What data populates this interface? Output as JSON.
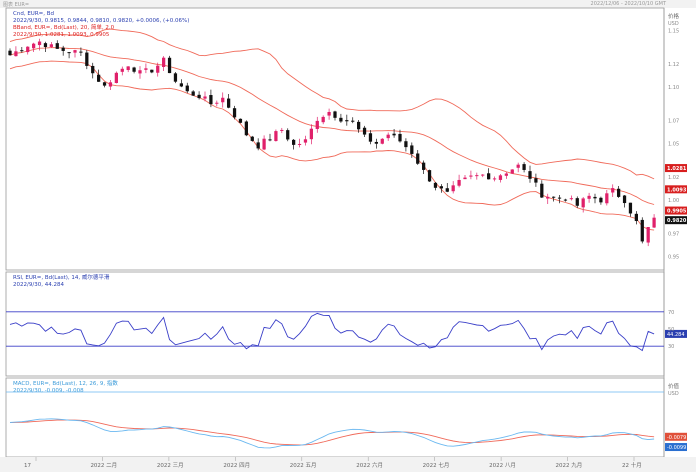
{
  "header": {
    "title": "图表 EUR=",
    "timestamp": "2022/12/06 - 2022/10/10 GMT"
  },
  "price_panel": {
    "legend": {
      "line1": "Cnd, EUR=, Bd",
      "line2": "2022/9/30, 0.9815, 0.9844, 0.9810, 0.9820, +0.0006, (+0.06%)",
      "line3": "BBand, EUR=, Bd(Last), 20, 简单, 2.0",
      "line4": "2022/9/30, 1.0281, 1.0093, 0.9905"
    },
    "unit": "价格\nUSD",
    "last_price": "0.9820",
    "colors": {
      "up": "#e0206a",
      "down": "#111111",
      "band": "#f06a5a",
      "last": "#111111",
      "tag": "#d81e1e"
    }
  },
  "rsi_panel": {
    "legend": {
      "line1": "RSI, EUR=, Bd(Last), 14, 威尔德平滑",
      "line2": "2022/9/30, 44.284"
    },
    "last_value": "44.284",
    "color": "#3a3fc8"
  },
  "macd_panel": {
    "legend": {
      "line1": "MACD, EUR=, Bd(Last), 12, 26, 9, 指数",
      "line2": "2022/9/30, -0.009, -0.008"
    },
    "unit": "价值\nUSD",
    "macd_last": "-0.0099",
    "signal_last": "-0.0079",
    "colors": {
      "macd": "#6ab8f0",
      "signal": "#f06a5a"
    }
  },
  "chart_data": [
    {
      "type": "line",
      "title": "Cnd, EUR=, Bd",
      "ylabel": "价格 USD",
      "ylim": [
        0.9,
        1.15
      ],
      "yticks": [
        0.95,
        0.97,
        1.0,
        1.02,
        1.05,
        1.07,
        1.1,
        1.12,
        1.15
      ],
      "xticks": [
        "17",
        "2022 二月",
        "2022 三月",
        "2022 四月",
        "2022 五月",
        "2022 六月",
        "2022 七月",
        "2022 八月",
        "2022 九月",
        "22 十月"
      ],
      "close_anchors": [
        [
          0,
          1.128
        ],
        [
          3,
          1.137
        ],
        [
          5,
          1.14
        ],
        [
          8,
          1.133
        ],
        [
          12,
          1.13
        ],
        [
          14,
          1.112
        ],
        [
          16,
          1.1
        ],
        [
          18,
          1.112
        ],
        [
          20,
          1.12
        ],
        [
          22,
          1.112
        ],
        [
          24,
          1.115
        ],
        [
          26,
          1.123
        ],
        [
          28,
          1.105
        ],
        [
          30,
          1.095
        ],
        [
          32,
          1.092
        ],
        [
          34,
          1.085
        ],
        [
          36,
          1.09
        ],
        [
          38,
          1.075
        ],
        [
          40,
          1.058
        ],
        [
          42,
          1.048
        ],
        [
          44,
          1.055
        ],
        [
          46,
          1.062
        ],
        [
          48,
          1.048
        ],
        [
          50,
          1.052
        ],
        [
          52,
          1.072
        ],
        [
          54,
          1.078
        ],
        [
          56,
          1.072
        ],
        [
          58,
          1.068
        ],
        [
          60,
          1.055
        ],
        [
          62,
          1.05
        ],
        [
          64,
          1.058
        ],
        [
          66,
          1.052
        ],
        [
          68,
          1.042
        ],
        [
          70,
          1.025
        ],
        [
          72,
          1.012
        ],
        [
          74,
          1.005
        ],
        [
          76,
          1.015
        ],
        [
          78,
          1.02
        ],
        [
          80,
          1.022
        ],
        [
          82,
          1.02
        ],
        [
          84,
          1.025
        ],
        [
          86,
          1.03
        ],
        [
          88,
          1.02
        ],
        [
          90,
          1.005
        ],
        [
          92,
          1.002
        ],
        [
          94,
          1.002
        ],
        [
          96,
          0.995
        ],
        [
          98,
          1.003
        ],
        [
          100,
          1.0
        ],
        [
          102,
          1.008
        ],
        [
          104,
          1.0
        ],
        [
          106,
          0.98
        ],
        [
          107,
          0.962
        ],
        [
          108,
          0.975
        ],
        [
          109,
          0.982
        ]
      ],
      "bollinger": {
        "period": 20,
        "std": 2.0,
        "last": {
          "upper": 1.0281,
          "middle": 1.0093,
          "lower": 0.9905
        }
      },
      "last_close": 0.982
    },
    {
      "type": "line",
      "title": "RSI, EUR=, Bd(Last), 14",
      "ylim": [
        0,
        100
      ],
      "levels": [
        30,
        70
      ],
      "last": 44.284
    },
    {
      "type": "line",
      "title": "MACD, EUR=, Bd(Last), 12, 26, 9",
      "ylabel": "价值 USD",
      "ylim": [
        -0.02,
        0.02
      ],
      "series": [
        {
          "name": "MACD",
          "last": -0.0099
        },
        {
          "name": "Signal",
          "last": -0.0079
        }
      ]
    }
  ]
}
